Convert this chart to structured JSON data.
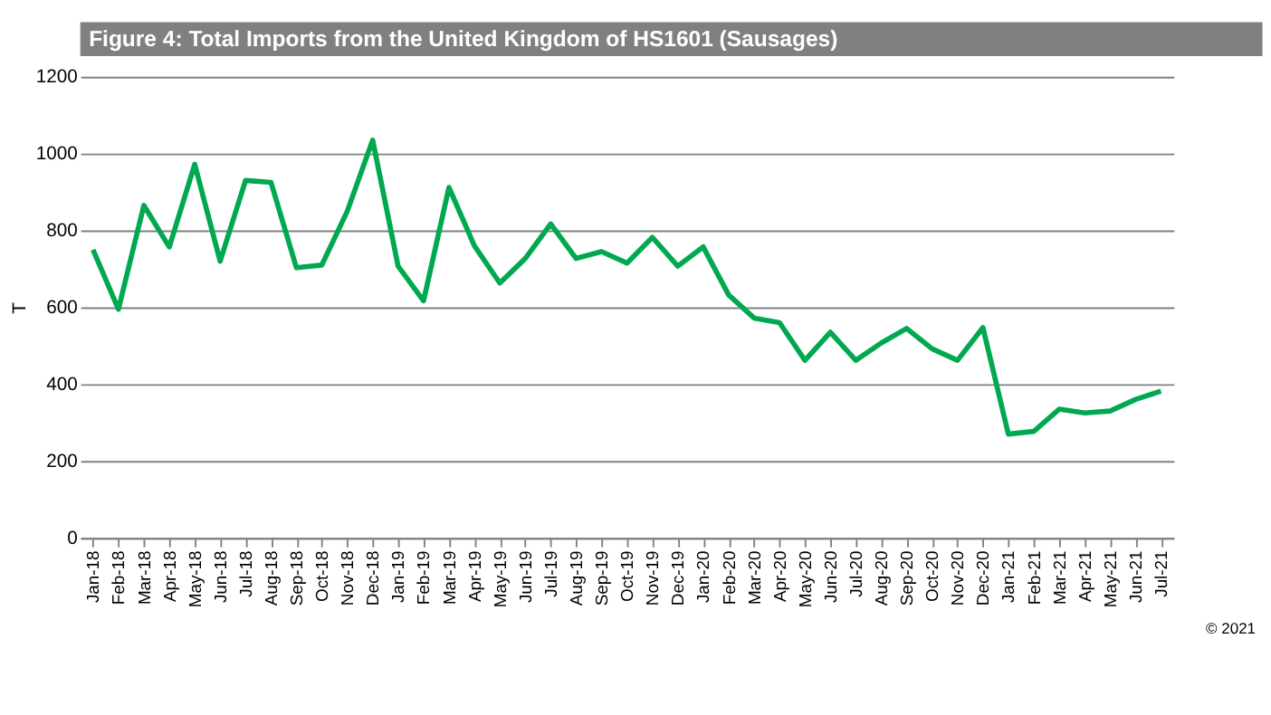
{
  "chart_data": {
    "type": "line",
    "title": "Figure 4: Total Imports from the United Kingdom of HS1601 (Sausages)",
    "ylabel": "T",
    "categories": [
      "Jan-18",
      "Feb-18",
      "Mar-18",
      "Apr-18",
      "May-18",
      "Jun-18",
      "Jul-18",
      "Aug-18",
      "Sep-18",
      "Oct-18",
      "Nov-18",
      "Dec-18",
      "Jan-19",
      "Feb-19",
      "Mar-19",
      "Apr-19",
      "May-19",
      "Jun-19",
      "Jul-19",
      "Aug-19",
      "Sep-19",
      "Oct-19",
      "Nov-19",
      "Dec-19",
      "Jan-20",
      "Feb-20",
      "Mar-20",
      "Apr-20",
      "May-20",
      "Jun-20",
      "Jul-20",
      "Aug-20",
      "Sep-20",
      "Oct-20",
      "Nov-20",
      "Dec-20",
      "Jan-21",
      "Feb-21",
      "Mar-21",
      "Apr-21",
      "May-21",
      "Jun-21",
      "Jul-21"
    ],
    "series": [
      {
        "color": "#00a84f",
        "values": [
          750,
          595,
          865,
          757,
          972,
          720,
          930,
          925,
          703,
          710,
          850,
          1035,
          707,
          617,
          912,
          760,
          663,
          727,
          817,
          727,
          745,
          715,
          782,
          707,
          757,
          632,
          572,
          560,
          462,
          535,
          462,
          507,
          545,
          492,
          462,
          547,
          270,
          277,
          335,
          325,
          330,
          360,
          382
        ]
      }
    ],
    "ylim": [
      0,
      1200
    ],
    "yticks": [
      0,
      200,
      400,
      600,
      800,
      1000,
      1200
    ],
    "grid": "y",
    "marker": "none",
    "line_style": "solid",
    "annotations": [
      "© 2021"
    ]
  }
}
